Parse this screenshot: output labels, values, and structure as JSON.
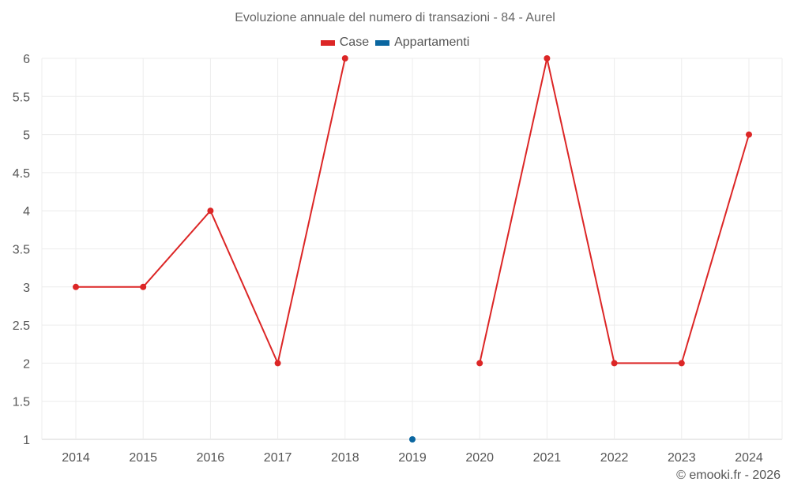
{
  "title": "Evoluzione annuale del numero di transazioni - 84 - Aurel",
  "legend": [
    {
      "label": "Case",
      "color": "#dc2626"
    },
    {
      "label": "Appartamenti",
      "color": "#0a66a0"
    }
  ],
  "credit": "© emooki.fr - 2026",
  "chart_data": {
    "type": "line",
    "title": "Evoluzione annuale del numero di transazioni - 84 - Aurel",
    "xlabel": "",
    "ylabel": "",
    "categories": [
      "2014",
      "2015",
      "2016",
      "2017",
      "2018",
      "2019",
      "2020",
      "2021",
      "2022",
      "2023",
      "2024"
    ],
    "series": [
      {
        "name": "Case",
        "color": "#dc2626",
        "values": [
          3,
          3,
          4,
          2,
          6,
          null,
          2,
          6,
          2,
          2,
          5
        ]
      },
      {
        "name": "Appartamenti",
        "color": "#0a66a0",
        "values": [
          null,
          null,
          null,
          null,
          null,
          1,
          null,
          null,
          null,
          null,
          null
        ]
      }
    ],
    "yticks": [
      "1",
      "1.5",
      "2",
      "2.5",
      "3",
      "3.5",
      "4",
      "4.5",
      "5",
      "5.5",
      "6"
    ],
    "ylim": [
      1,
      6
    ],
    "grid": true,
    "legend_position": "top"
  }
}
